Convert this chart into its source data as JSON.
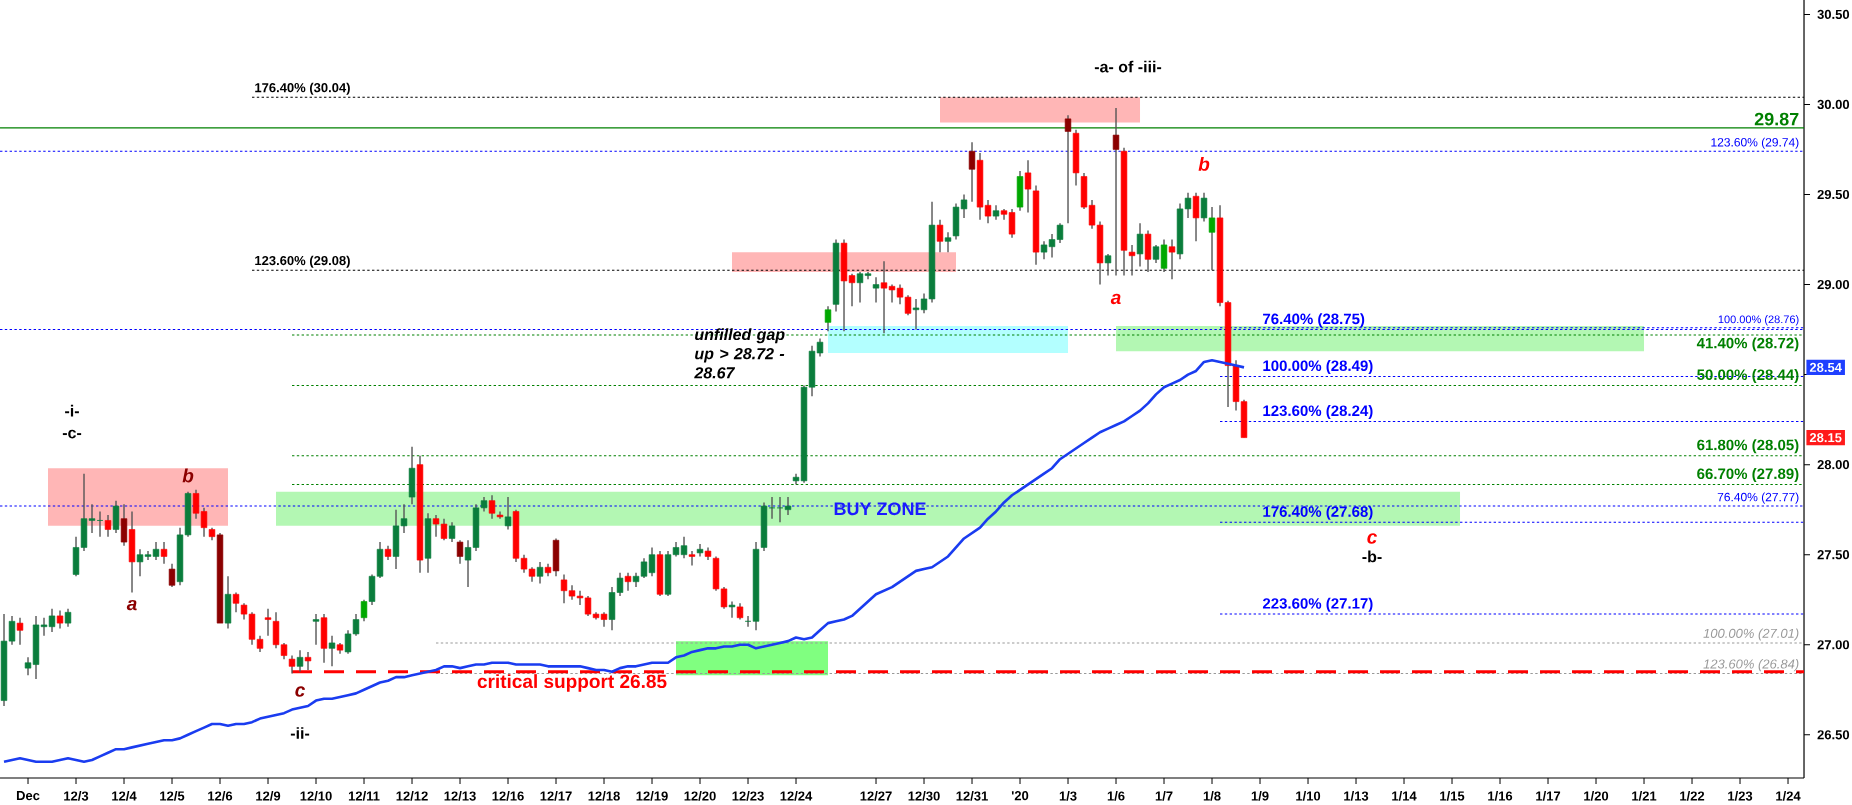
{
  "chart_data": {
    "type": "candlestick",
    "categories": [
      null,
      null,
      null,
      "Dec",
      null,
      null,
      null,
      null,
      null,
      "12/3",
      null,
      null,
      null,
      null,
      null,
      "12/4",
      null,
      null,
      null,
      null,
      null,
      "12/5",
      null,
      null,
      null,
      null,
      null,
      "12/6",
      null,
      null,
      null,
      null,
      null,
      "12/9",
      null,
      null,
      null,
      null,
      null,
      "12/10",
      null,
      null,
      null,
      null,
      null,
      "12/11",
      null,
      null,
      null,
      null,
      null,
      "12/12",
      null,
      null,
      null,
      null,
      null,
      "12/13",
      null,
      null,
      null,
      null,
      null,
      "12/16",
      null,
      null,
      null,
      null,
      null,
      "12/17",
      null,
      null,
      null,
      null,
      null,
      "12/18",
      null,
      null,
      null,
      null,
      null,
      "12/19",
      null,
      null,
      null,
      null,
      null,
      "12/20",
      null,
      null,
      null,
      null,
      null,
      "12/23",
      null,
      null,
      null,
      null,
      null,
      "12/24",
      null,
      null,
      null,
      null,
      null,
      null,
      null,
      null,
      null,
      "12/27",
      null,
      null,
      null,
      null,
      null,
      "12/30",
      null,
      null,
      null,
      null,
      null,
      "12/31",
      null,
      null,
      null,
      null,
      null,
      "'20",
      null,
      null,
      null,
      null,
      null,
      "1/3",
      null,
      null,
      null,
      null,
      null,
      "1/6",
      null,
      null,
      null,
      null,
      null,
      "1/7",
      null,
      null,
      null,
      null,
      null,
      "1/8",
      null,
      null,
      null,
      null,
      null,
      "1/9",
      null,
      null,
      null,
      null,
      null,
      "1/10",
      null,
      null,
      null,
      null,
      null,
      "1/13",
      null,
      null,
      null,
      null,
      null,
      "1/14",
      null,
      null,
      null,
      null,
      null,
      "1/15",
      null,
      null,
      null,
      null,
      null,
      "1/16",
      null,
      null,
      null,
      null,
      null,
      "1/17",
      null,
      null,
      null,
      null,
      null,
      "1/20",
      null,
      null,
      null,
      null,
      null,
      "1/21",
      null,
      null,
      null,
      null,
      null,
      "1/22",
      null,
      null,
      null,
      null,
      null,
      "1/23",
      null,
      null,
      null,
      null,
      null,
      "1/24",
      null,
      null
    ],
    "ohlc": [
      [
        26.69,
        27.17,
        26.66,
        27.02
      ],
      [
        27.02,
        27.16,
        27.0,
        27.13
      ],
      [
        27.12,
        27.15,
        27.0,
        27.08
      ],
      [
        26.87,
        26.93,
        26.83,
        26.9
      ],
      [
        26.89,
        27.16,
        26.81,
        27.11
      ],
      [
        27.1,
        27.15,
        27.05,
        27.11
      ],
      [
        27.1,
        27.2,
        27.07,
        27.16
      ],
      [
        27.16,
        27.19,
        27.09,
        27.12
      ],
      [
        27.12,
        27.2,
        27.1,
        27.18
      ],
      [
        27.39,
        27.6,
        27.38,
        27.54
      ],
      [
        27.54,
        27.95,
        27.52,
        27.7
      ],
      [
        27.69,
        27.78,
        27.62,
        27.7
      ],
      [
        27.69,
        27.74,
        27.6,
        27.69
      ],
      [
        27.69,
        27.72,
        27.6,
        27.64
      ],
      [
        27.64,
        27.8,
        27.62,
        27.77
      ],
      [
        27.7,
        27.78,
        27.55,
        27.57
      ],
      [
        27.64,
        27.74,
        27.29,
        27.46
      ],
      [
        27.46,
        27.53,
        27.38,
        27.5
      ],
      [
        27.49,
        27.52,
        27.47,
        27.5
      ],
      [
        27.49,
        27.57,
        27.47,
        27.53
      ],
      [
        27.53,
        27.57,
        27.45,
        27.49
      ],
      [
        27.42,
        27.45,
        27.32,
        27.33
      ],
      [
        27.35,
        27.65,
        27.33,
        27.61
      ],
      [
        27.61,
        27.85,
        27.6,
        27.84
      ],
      [
        27.84,
        27.86,
        27.7,
        27.73
      ],
      [
        27.74,
        27.76,
        27.6,
        27.65
      ],
      [
        27.64,
        27.65,
        27.58,
        27.6
      ],
      [
        27.61,
        27.62,
        27.12,
        27.12
      ],
      [
        27.12,
        27.38,
        27.09,
        27.28
      ],
      [
        27.28,
        27.29,
        27.18,
        27.23
      ],
      [
        27.22,
        27.23,
        27.14,
        27.17
      ],
      [
        27.17,
        27.18,
        27.0,
        27.03
      ],
      [
        27.03,
        27.05,
        26.96,
        26.98
      ],
      [
        27.15,
        27.2,
        27.05,
        27.14
      ],
      [
        27.13,
        27.18,
        26.98,
        27.0
      ],
      [
        27.0,
        27.01,
        26.92,
        26.94
      ],
      [
        26.92,
        26.94,
        26.84,
        26.88
      ],
      [
        26.88,
        26.97,
        26.85,
        26.93
      ],
      [
        26.93,
        26.96,
        26.86,
        26.91
      ],
      [
        27.13,
        27.17,
        27.0,
        27.14
      ],
      [
        27.15,
        27.17,
        26.9,
        26.98
      ],
      [
        26.98,
        27.05,
        26.88,
        27.01
      ],
      [
        27.0,
        27.01,
        26.95,
        26.97
      ],
      [
        26.96,
        27.08,
        26.95,
        27.06
      ],
      [
        27.06,
        27.17,
        27.05,
        27.14
      ],
      [
        27.15,
        27.25,
        27.13,
        27.24
      ],
      [
        27.24,
        27.39,
        27.22,
        27.38
      ],
      [
        27.38,
        27.57,
        27.37,
        27.53
      ],
      [
        27.53,
        27.55,
        27.47,
        27.49
      ],
      [
        27.49,
        27.75,
        27.42,
        27.66
      ],
      [
        27.66,
        27.78,
        27.62,
        27.7
      ],
      [
        27.82,
        28.1,
        27.78,
        27.98
      ],
      [
        28.0,
        28.05,
        27.4,
        27.47
      ],
      [
        27.48,
        27.73,
        27.4,
        27.7
      ],
      [
        27.7,
        27.72,
        27.6,
        27.67
      ],
      [
        27.67,
        27.7,
        27.58,
        27.59
      ],
      [
        27.59,
        27.68,
        27.57,
        27.66
      ],
      [
        27.57,
        27.58,
        27.45,
        27.49
      ],
      [
        27.47,
        27.58,
        27.32,
        27.54
      ],
      [
        27.54,
        27.78,
        27.52,
        27.76
      ],
      [
        27.76,
        27.82,
        27.74,
        27.8
      ],
      [
        27.8,
        27.83,
        27.7,
        27.73
      ],
      [
        27.72,
        27.74,
        27.7,
        27.71
      ],
      [
        27.66,
        27.82,
        27.64,
        27.71
      ],
      [
        27.74,
        27.75,
        27.46,
        27.48
      ],
      [
        27.48,
        27.5,
        27.4,
        27.42
      ],
      [
        27.42,
        27.43,
        27.35,
        27.38
      ],
      [
        27.38,
        27.46,
        27.34,
        27.43
      ],
      [
        27.43,
        27.45,
        27.38,
        27.4
      ],
      [
        27.58,
        27.59,
        27.38,
        27.41
      ],
      [
        27.36,
        27.39,
        27.23,
        27.3
      ],
      [
        27.3,
        27.33,
        27.25,
        27.27
      ],
      [
        27.27,
        27.3,
        27.22,
        27.26
      ],
      [
        27.26,
        27.27,
        27.16,
        27.17
      ],
      [
        27.17,
        27.18,
        27.14,
        27.15
      ],
      [
        27.17,
        27.18,
        27.1,
        27.14
      ],
      [
        27.14,
        27.32,
        27.08,
        27.29
      ],
      [
        27.29,
        27.4,
        27.27,
        27.37
      ],
      [
        27.38,
        27.4,
        27.3,
        27.35
      ],
      [
        27.35,
        27.4,
        27.32,
        27.38
      ],
      [
        27.38,
        27.48,
        27.37,
        27.46
      ],
      [
        27.4,
        27.54,
        27.38,
        27.5
      ],
      [
        27.5,
        27.52,
        27.27,
        27.28
      ],
      [
        27.28,
        27.52,
        27.27,
        27.5
      ],
      [
        27.5,
        27.57,
        27.49,
        27.54
      ],
      [
        27.5,
        27.6,
        27.48,
        27.55
      ],
      [
        27.5,
        27.52,
        27.44,
        27.49
      ],
      [
        27.51,
        27.56,
        27.49,
        27.53
      ],
      [
        27.52,
        27.54,
        27.47,
        27.49
      ],
      [
        27.48,
        27.49,
        27.3,
        27.31
      ],
      [
        27.31,
        27.32,
        27.2,
        27.21
      ],
      [
        27.21,
        27.24,
        27.15,
        27.22
      ],
      [
        27.21,
        27.23,
        27.14,
        27.15
      ],
      [
        27.13,
        27.16,
        27.1,
        27.13
      ],
      [
        27.13,
        27.57,
        27.08,
        27.53
      ],
      [
        27.54,
        27.79,
        27.52,
        27.77
      ],
      [
        27.76,
        27.82,
        27.7,
        27.76
      ],
      [
        27.76,
        27.82,
        27.68,
        27.76
      ],
      [
        27.75,
        27.82,
        27.72,
        27.77
      ],
      [
        27.91,
        27.95,
        27.89,
        27.93
      ],
      [
        27.91,
        28.44,
        27.9,
        28.43
      ],
      [
        28.43,
        28.66,
        28.38,
        28.63
      ],
      [
        28.62,
        28.7,
        28.6,
        28.68
      ],
      [
        28.79,
        28.88,
        28.74,
        28.86
      ],
      [
        28.89,
        29.25,
        28.85,
        29.23
      ],
      [
        29.23,
        29.25,
        28.74,
        29.02
      ],
      [
        29.05,
        29.06,
        28.88,
        29.01
      ],
      [
        29.01,
        29.07,
        28.9,
        29.06
      ],
      [
        29.05,
        29.07,
        29.03,
        29.06
      ],
      [
        28.98,
        29.04,
        28.9,
        29.0
      ],
      [
        29.01,
        29.13,
        28.73,
        28.98
      ],
      [
        28.99,
        29.0,
        28.9,
        28.97
      ],
      [
        28.98,
        29.0,
        28.89,
        28.93
      ],
      [
        28.93,
        28.94,
        28.83,
        28.84
      ],
      [
        28.86,
        28.92,
        28.75,
        28.87
      ],
      [
        28.86,
        28.95,
        28.84,
        28.92
      ],
      [
        28.92,
        29.46,
        28.9,
        29.33
      ],
      [
        29.33,
        29.36,
        29.18,
        29.24
      ],
      [
        29.24,
        29.29,
        29.18,
        29.26
      ],
      [
        29.27,
        29.45,
        29.25,
        29.43
      ],
      [
        29.42,
        29.5,
        29.37,
        29.47
      ],
      [
        29.74,
        29.79,
        29.46,
        29.64
      ],
      [
        29.69,
        29.73,
        29.36,
        29.43
      ],
      [
        29.44,
        29.47,
        29.34,
        29.38
      ],
      [
        29.38,
        29.44,
        29.36,
        29.41
      ],
      [
        29.41,
        29.42,
        29.36,
        29.39
      ],
      [
        29.4,
        29.42,
        29.26,
        29.28
      ],
      [
        29.43,
        29.63,
        29.41,
        29.6
      ],
      [
        29.62,
        29.69,
        29.4,
        29.53
      ],
      [
        29.52,
        29.55,
        29.11,
        29.18
      ],
      [
        29.18,
        29.24,
        29.14,
        29.22
      ],
      [
        29.21,
        29.28,
        29.15,
        29.25
      ],
      [
        29.25,
        29.34,
        29.23,
        29.33
      ],
      [
        29.92,
        29.94,
        29.34,
        29.85
      ],
      [
        29.84,
        29.86,
        29.55,
        29.62
      ],
      [
        29.6,
        29.62,
        29.42,
        29.43
      ],
      [
        29.44,
        29.47,
        29.31,
        29.33
      ],
      [
        29.33,
        29.35,
        29.0,
        29.12
      ],
      [
        29.12,
        29.17,
        29.05,
        29.16
      ],
      [
        29.83,
        29.98,
        29.05,
        29.75
      ],
      [
        29.74,
        29.76,
        29.05,
        29.19
      ],
      [
        29.18,
        29.22,
        29.05,
        29.16
      ],
      [
        29.17,
        29.34,
        29.1,
        29.28
      ],
      [
        29.28,
        29.3,
        29.07,
        29.14
      ],
      [
        29.14,
        29.22,
        29.12,
        29.21
      ],
      [
        29.09,
        29.25,
        29.07,
        29.22
      ],
      [
        29.21,
        29.25,
        29.03,
        29.18
      ],
      [
        29.17,
        29.45,
        29.14,
        29.42
      ],
      [
        29.42,
        29.51,
        29.37,
        29.48
      ],
      [
        29.49,
        29.51,
        29.24,
        29.37
      ],
      [
        29.37,
        29.51,
        29.35,
        29.48
      ],
      [
        29.29,
        29.43,
        29.08,
        29.37
      ],
      [
        29.37,
        29.44,
        28.88,
        28.9
      ],
      [
        28.9,
        28.91,
        28.32,
        28.55
      ],
      [
        28.55,
        28.58,
        28.3,
        28.35
      ],
      [
        28.35,
        28.36,
        28.15,
        28.15
      ],
      null,
      null,
      null,
      null,
      null,
      null,
      null,
      null,
      null,
      null,
      null,
      null,
      null,
      null,
      null,
      null,
      null,
      null,
      null,
      null,
      null,
      null,
      null,
      null,
      null,
      null,
      null,
      null,
      null,
      null,
      null,
      null,
      null,
      null,
      null,
      null,
      null,
      null,
      null,
      null,
      null,
      null,
      null,
      null,
      null,
      null,
      null,
      null,
      null,
      null,
      null,
      null,
      null,
      null,
      null,
      null,
      null,
      null,
      null,
      null,
      null,
      null,
      null,
      null,
      null,
      null,
      null,
      null,
      null,
      null
    ],
    "colors": [
      "#0a7d3c",
      "#0a7d3c",
      "#ff0000",
      "#0a7d3c",
      "#0a7d3c",
      "#0a7d3c",
      "#0a7d3c",
      "#ff0000",
      "#0a7d3c",
      "#0a7d3c",
      "#0a7d3c",
      "#0a7d3c",
      "#0a7d3c",
      "#ff0000",
      "#0a7d3c",
      "#8b0000",
      "#ff0000",
      "#0a7d3c",
      "#0a7d3c",
      "#0a7d3c",
      "#ff0000",
      "#8b0000",
      "#0a7d3c",
      "#0a7d3c",
      "#ff0000",
      "#ff0000",
      "#ff0000",
      "#8b0000",
      "#0a7d3c",
      "#ff0000",
      "#ff0000",
      "#ff0000",
      "#ff0000",
      "#ff0000",
      "#ff0000",
      "#ff0000",
      "#ff0000",
      "#0a7d3c",
      "#ff0000",
      "#0a7d3c",
      "#ff0000",
      "#0a7d3c",
      "#ff0000",
      "#0a7d3c",
      "#0a7d3c",
      "#00a800",
      "#0a7d3c",
      "#0a7d3c",
      "#ff0000",
      "#0a7d3c",
      "#0a7d3c",
      "#0a7d3c",
      "#ff0000",
      "#0a7d3c",
      "#ff0000",
      "#ff0000",
      "#0a7d3c",
      "#8b0000",
      "#0a7d3c",
      "#0a7d3c",
      "#0a7d3c",
      "#ff0000",
      "#ff0000",
      "#0a7d3c",
      "#ff0000",
      "#ff0000",
      "#ff0000",
      "#0a7d3c",
      "#ff0000",
      "#8b0000",
      "#ff0000",
      "#ff0000",
      "#ff0000",
      "#ff0000",
      "#ff0000",
      "#ff0000",
      "#0a7d3c",
      "#0a7d3c",
      "#ff0000",
      "#0a7d3c",
      "#0a7d3c",
      "#0a7d3c",
      "#ff0000",
      "#0a7d3c",
      "#0a7d3c",
      "#0a7d3c",
      "#ff0000",
      "#0a7d3c",
      "#ff0000",
      "#ff0000",
      "#ff0000",
      "#0a7d3c",
      "#ff0000",
      "#0a7d3c",
      "#0a7d3c",
      "#0a7d3c",
      "#0a7d3c",
      "#0a7d3c",
      "#0a7d3c",
      "#0a7d3c",
      "#0a7d3c",
      "#0a7d3c",
      "#0a7d3c",
      "#00a800",
      "#0a7d3c",
      "#ff0000",
      "#ff0000",
      "#0a7d3c",
      "#0a7d3c",
      "#0a7d3c",
      "#ff0000",
      "#ff0000",
      "#ff0000",
      "#ff0000",
      "#0a7d3c",
      "#0a7d3c",
      "#0a7d3c",
      "#ff0000",
      "#0a7d3c",
      "#0a7d3c",
      "#0a7d3c",
      "#8b0000",
      "#ff0000",
      "#ff0000",
      "#0a7d3c",
      "#ff0000",
      "#ff0000",
      "#00a800",
      "#ff0000",
      "#ff0000",
      "#0a7d3c",
      "#0a7d3c",
      "#0a7d3c",
      "#8b0000",
      "#ff0000",
      "#ff0000",
      "#ff0000",
      "#ff0000",
      "#0a7d3c",
      "#8b0000",
      "#ff0000",
      "#ff0000",
      "#0a7d3c",
      "#ff0000",
      "#0a7d3c",
      "#00a800",
      "#ff0000",
      "#0a7d3c",
      "#0a7d3c",
      "#ff0000",
      "#0a7d3c",
      "#00a800",
      "#ff0000",
      "#ff0000",
      "#ff0000",
      "#ff0000",
      null,
      null,
      null,
      null,
      null,
      null,
      null,
      null,
      null,
      null,
      null,
      null,
      null,
      null,
      null,
      null,
      null,
      null,
      null,
      null,
      null,
      null,
      null,
      null,
      null,
      null,
      null,
      null,
      null,
      null,
      null,
      null,
      null,
      null,
      null,
      null,
      null,
      null,
      null,
      null,
      null,
      null,
      null,
      null,
      null,
      null,
      null,
      null,
      null,
      null,
      null,
      null,
      null,
      null,
      null,
      null,
      null,
      null,
      null,
      null,
      null,
      null,
      null,
      null,
      null,
      null,
      null,
      null,
      null,
      null
    ],
    "series": [
      {
        "type": "line",
        "color": "#1a3cf0",
        "values": [
          26.35,
          26.36,
          26.37,
          26.36,
          26.35,
          26.35,
          26.35,
          26.36,
          26.37,
          26.36,
          26.35,
          26.36,
          26.38,
          26.4,
          26.42,
          26.42,
          26.43,
          26.44,
          26.45,
          26.46,
          26.47,
          26.47,
          26.48,
          26.5,
          26.52,
          26.54,
          26.56,
          26.56,
          26.55,
          26.56,
          26.56,
          26.57,
          26.59,
          26.6,
          26.61,
          26.62,
          26.64,
          26.65,
          26.66,
          26.69,
          26.7,
          26.7,
          26.71,
          26.72,
          26.73,
          26.75,
          26.77,
          26.79,
          26.8,
          26.82,
          26.82,
          26.83,
          26.84,
          26.85,
          26.86,
          26.88,
          26.88,
          26.87,
          26.88,
          26.89,
          26.89,
          26.9,
          26.9,
          26.9,
          26.89,
          26.89,
          26.89,
          26.89,
          26.88,
          26.88,
          26.88,
          26.88,
          26.88,
          26.87,
          26.86,
          26.86,
          26.85,
          26.87,
          26.88,
          26.88,
          26.89,
          26.9,
          26.9,
          26.9,
          26.93,
          26.94,
          26.96,
          26.97,
          26.98,
          26.98,
          26.99,
          26.99,
          27.0,
          27.0,
          26.98,
          26.99,
          27.0,
          27.01,
          27.02,
          27.04,
          27.03,
          27.04,
          27.08,
          27.12,
          27.13,
          27.14,
          27.16,
          27.2,
          27.24,
          27.28,
          27.3,
          27.32,
          27.35,
          27.38,
          27.41,
          27.42,
          27.43,
          27.46,
          27.49,
          27.54,
          27.59,
          27.62,
          27.65,
          27.7,
          27.74,
          27.79,
          27.83,
          27.86,
          27.89,
          27.92,
          27.95,
          27.98,
          28.03,
          28.06,
          28.09,
          28.12,
          28.15,
          28.18,
          28.2,
          28.22,
          28.24,
          28.27,
          28.3,
          28.34,
          28.39,
          28.43,
          28.45,
          28.47,
          28.5,
          28.52,
          28.57,
          28.58,
          28.57,
          28.56,
          28.55,
          28.54,
          null,
          null,
          null,
          null,
          null,
          null,
          null,
          null,
          null,
          null,
          null,
          null,
          null,
          null,
          null,
          null,
          null,
          null,
          null,
          null,
          null,
          null,
          null,
          null,
          null,
          null,
          null,
          null,
          null,
          null,
          null,
          null,
          null,
          null,
          null,
          null,
          null,
          null,
          null,
          null,
          null,
          null,
          null,
          null,
          null,
          null,
          null,
          null,
          null,
          null,
          null,
          null,
          null,
          null,
          null,
          null,
          null,
          null,
          null,
          null,
          null,
          null,
          null,
          null,
          null,
          null,
          null,
          null,
          null,
          null
        ]
      }
    ],
    "ylim": [
      26.26,
      30.58
    ],
    "yticks": [
      {
        "value": 26.5,
        "label": "26.50"
      },
      {
        "value": 27,
        "label": "27.00"
      },
      {
        "value": 27.5,
        "label": "27.50"
      },
      {
        "value": 28,
        "label": "28.00"
      },
      {
        "value": 28.5,
        "label": null
      },
      {
        "value": 29,
        "label": "29.00"
      },
      {
        "value": 29.5,
        "label": "29.50"
      },
      {
        "value": 30,
        "label": "30.00"
      },
      {
        "value": 30.5,
        "label": "30.50"
      }
    ],
    "ref_lines": [
      {
        "axis": "y",
        "value": 30.04,
        "label": "176.40% (30.04)",
        "color": "#000000",
        "line_style": "dotted"
      },
      {
        "axis": "y",
        "value": 29.87,
        "label": "29.87",
        "color": "#008000",
        "line_style": "solid"
      },
      {
        "axis": "y",
        "value": 29.74,
        "label": "123.60% (29.74)",
        "color": "#0000ff",
        "line_style": "dotted"
      },
      {
        "axis": "y",
        "value": 29.08,
        "label": "123.60% (29.08)",
        "color": "#000000",
        "line_style": "dotted"
      },
      {
        "axis": "y",
        "value": 28.75,
        "label": "76.40% (28.75)",
        "color": "#0000ff",
        "line_style": "dotted"
      },
      {
        "axis": "y",
        "value": 28.76,
        "label": "100.00% (28.76)",
        "color": "#0000ff",
        "line_style": "dotted"
      },
      {
        "axis": "y",
        "value": 28.72,
        "label": "41.40% (28.72)",
        "color": "#008000",
        "line_style": "dotted"
      },
      {
        "axis": "y",
        "value": 28.49,
        "label": "100.00% (28.49)",
        "color": "#0000ff",
        "line_style": "dotted"
      },
      {
        "axis": "y",
        "value": 28.44,
        "label": "50.00% (28.44)",
        "color": "#008000",
        "line_style": "dotted"
      },
      {
        "axis": "y",
        "value": 28.24,
        "label": "123.60% (28.24)",
        "color": "#0000ff",
        "line_style": "dotted"
      },
      {
        "axis": "y",
        "value": 28.05,
        "label": "61.80% (28.05)",
        "color": "#008000",
        "line_style": "dotted"
      },
      {
        "axis": "y",
        "value": 27.89,
        "label": "66.70% (27.89)",
        "color": "#008000",
        "line_style": "dotted"
      },
      {
        "axis": "y",
        "value": 27.77,
        "label": "76.40% (27.77)",
        "color": "#0000ff",
        "line_style": "dotted"
      },
      {
        "axis": "y",
        "value": 27.68,
        "label": "176.40% (27.68)",
        "color": "#0000ff",
        "line_style": "dotted"
      },
      {
        "axis": "y",
        "value": 27.17,
        "label": "223.60% (27.17)",
        "color": "#0000ff",
        "line_style": "dotted"
      },
      {
        "axis": "y",
        "value": 27.01,
        "label": "100.00% (27.01)",
        "color": "#999999",
        "line_style": "dotted"
      },
      {
        "axis": "y",
        "value": 26.84,
        "label": "123.60% (26.84)",
        "color": "#999999",
        "line_style": "dotted"
      },
      {
        "axis": "y",
        "value": 26.85,
        "label": "critical support 26.85",
        "color": "#ff0000",
        "line_style": "dashed"
      }
    ],
    "bands": [
      {
        "axis": "y",
        "from": 27.66,
        "to": 27.98,
        "color": "#ffb6b6"
      },
      {
        "axis": "y",
        "from": 27.66,
        "to": 27.85,
        "label": "BUY ZONE",
        "color": "#b3f7b3"
      },
      {
        "axis": "y",
        "from": 26.83,
        "to": 27.02,
        "color": "#80ff80"
      },
      {
        "axis": "y",
        "from": 29.07,
        "to": 29.18,
        "color": "#ffb6b6"
      },
      {
        "axis": "y",
        "from": 28.62,
        "to": 28.77,
        "label": "unfilled gap up > 28.72 - 28.67",
        "color": "#b3ffff"
      },
      {
        "axis": "y",
        "from": 29.9,
        "to": 30.04,
        "color": "#ffb6b6"
      },
      {
        "axis": "y",
        "from": 28.63,
        "to": 28.77,
        "color": "#b3f7b3"
      }
    ],
    "annotations": [
      "-i-",
      "-c-",
      "b",
      "a",
      "c",
      "-ii-",
      "-a- of -iii-",
      "a",
      "b",
      "c",
      "-b-",
      {
        "text": "28.54",
        "y": 28.54
      },
      {
        "text": "28.15",
        "y": 28.15
      }
    ]
  }
}
